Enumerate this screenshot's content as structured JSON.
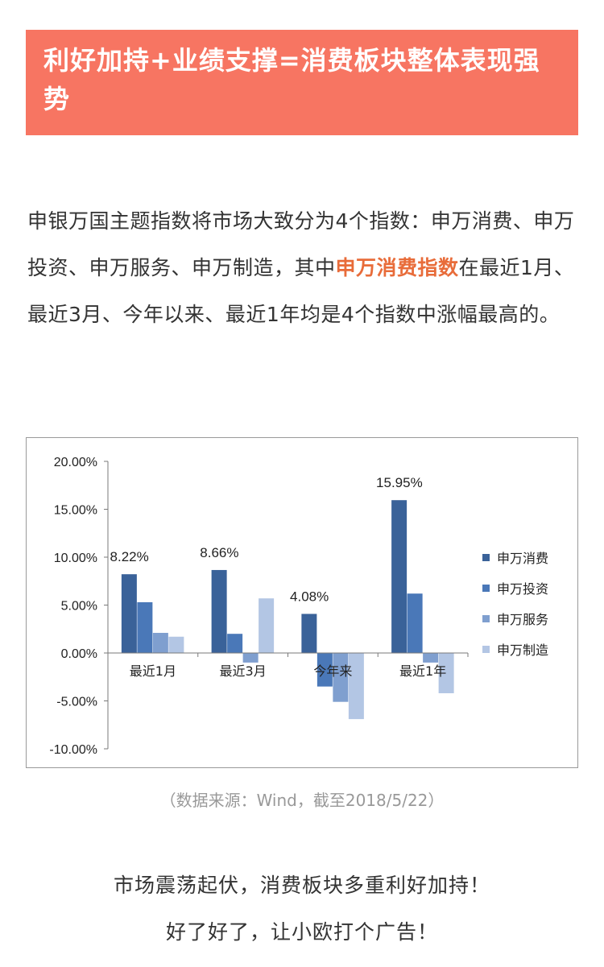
{
  "header": {
    "title": "利好加持+业绩支撑=消费板块整体表现强势"
  },
  "paragraph": {
    "before": "申银万国主题指数将市场大致分为4个指数：申万消费、申万投资、申万服务、申万制造，其中",
    "highlight": "申万消费指数",
    "after": "在最近1月、最近3月、今年以来、最近1年均是4个指数中涨幅最高的。"
  },
  "chart_data": {
    "type": "bar",
    "categories": [
      "最近1月",
      "最近3月",
      "今年来",
      "最近1年"
    ],
    "series": [
      {
        "name": "申万消费",
        "values": [
          8.22,
          8.66,
          4.08,
          15.95
        ],
        "color": "#3a6299"
      },
      {
        "name": "申万投资",
        "values": [
          5.3,
          2.0,
          -3.5,
          6.2
        ],
        "color": "#4a78b8"
      },
      {
        "name": "申万服务",
        "values": [
          2.1,
          -1.0,
          -5.1,
          -1.0
        ],
        "color": "#7f9fcf"
      },
      {
        "name": "申万制造",
        "values": [
          1.7,
          5.7,
          -6.9,
          -4.2
        ],
        "color": "#b3c6e4"
      }
    ],
    "data_labels": [
      "8.22%",
      "8.66%",
      "4.08%",
      "15.95%"
    ],
    "y_ticks": [
      "20.00%",
      "15.00%",
      "10.00%",
      "5.00%",
      "0.00%",
      "-5.00%",
      "-10.00%"
    ],
    "ylim": [
      -10,
      20
    ],
    "legend_position": "right",
    "grid": false
  },
  "source_note": "（数据来源：Wind，截至2018/5/22）",
  "closing": {
    "line1": "市场震荡起伏，消费板块多重利好加持！",
    "line2": "好了好了，让小欧打个广告！"
  }
}
